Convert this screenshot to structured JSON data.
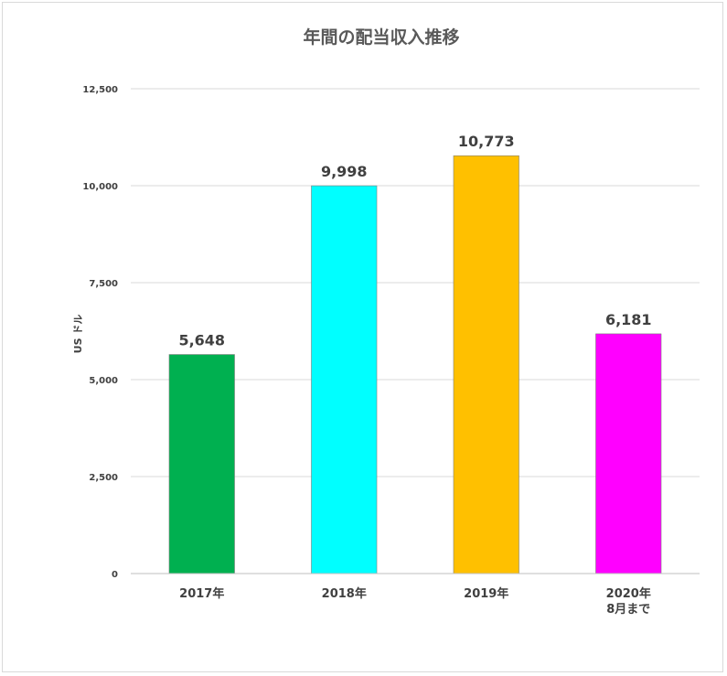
{
  "chart_data": {
    "type": "bar",
    "title": "年間の配当収入推移",
    "ylabel": "US ドル",
    "xlabel": "",
    "categories": [
      [
        "2017年"
      ],
      [
        "2018年"
      ],
      [
        "2019年"
      ],
      [
        "2020年",
        "8月まで"
      ]
    ],
    "values": [
      5648,
      9998,
      10773,
      6181
    ],
    "data_labels": [
      "5,648",
      "9,998",
      "10,773",
      "6,181"
    ],
    "bar_colors": [
      "#00b050",
      "#00ffff",
      "#ffc000",
      "#ff00ff"
    ],
    "ylim": [
      0,
      12500
    ],
    "yticks": [
      0,
      2500,
      5000,
      7500,
      10000,
      12500
    ],
    "ytick_labels": [
      "0",
      "2,500",
      "5,000",
      "7,500",
      "10,000",
      "12,500"
    ],
    "grid": true,
    "legend": "none"
  }
}
